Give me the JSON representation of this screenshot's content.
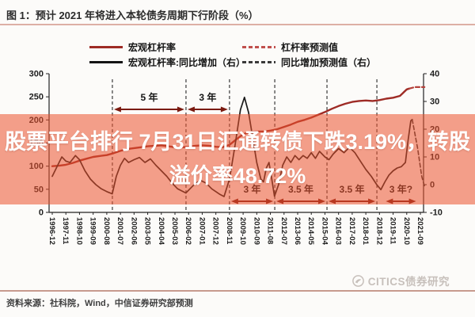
{
  "title": "图 1：预计 2021 年将进入本轮债务周期下行阶段（%）",
  "legend": [
    {
      "label": "宏观杠杆率",
      "style": "solid",
      "color": "#9e2b25"
    },
    {
      "label": "杠杆率预测值",
      "style": "dashed",
      "color": "#c0504d"
    },
    {
      "label": "宏观杠杆率:同比增加（右）",
      "style": "solid",
      "color": "#141414"
    },
    {
      "label": "同比增加预测值（右）",
      "style": "dashed",
      "color": "#3a3a3a"
    }
  ],
  "overlay": {
    "line1": "股票平台排行 7月31日汇通转债下跌3.19%，转股",
    "line2": "溢价率48.72%",
    "band_color": "rgba(235,82,46,0.55)",
    "text_color": "#ffffff"
  },
  "source": "资料来源：社科院，Wind，中信证券研究部预测",
  "watermark": "CITICS债券研究",
  "chart_data": {
    "type": "line",
    "x_tick_labels": [
      "1996-12",
      "1997-11",
      "1998-10",
      "1999-09",
      "2000-08",
      "2001-07",
      "2002-06",
      "2003-05",
      "2004-04",
      "2005-03",
      "2006-02",
      "2007-01",
      "2007-12",
      "2008-11",
      "2009-10",
      "2010-09",
      "2011-08",
      "2012-07",
      "2013-06",
      "2014-05",
      "2015-04",
      "2016-03",
      "2017-02",
      "2018-01",
      "2018-12",
      "2019-11",
      "2020-10",
      "2021-09"
    ],
    "left_axis": {
      "ticks": [
        300,
        250,
        200,
        150,
        100,
        50,
        0
      ],
      "range": [
        0,
        300
      ]
    },
    "right_axis": {
      "ticks": [
        40,
        30,
        20,
        10,
        0,
        -10
      ],
      "range": [
        -10,
        40
      ]
    },
    "series": [
      {
        "name": "宏观杠杆率",
        "axis": "left",
        "style": "solid",
        "color": "#9e2b25",
        "width": 2.4,
        "points": [
          [
            0,
            100
          ],
          [
            0.5,
            101
          ],
          [
            1,
            103
          ],
          [
            1.5,
            107
          ],
          [
            2,
            112
          ],
          [
            2.5,
            116
          ],
          [
            3,
            120
          ],
          [
            3.5,
            122
          ],
          [
            4,
            124
          ],
          [
            4.5,
            128
          ],
          [
            5,
            133
          ],
          [
            5.5,
            137
          ],
          [
            6,
            139
          ],
          [
            6.5,
            141
          ],
          [
            7,
            143
          ],
          [
            7.5,
            144
          ],
          [
            8,
            145
          ],
          [
            8.5,
            143
          ],
          [
            9,
            141
          ],
          [
            9.5,
            141
          ],
          [
            10,
            142
          ],
          [
            10.5,
            144
          ],
          [
            11,
            145
          ],
          [
            11.5,
            144
          ],
          [
            12,
            142
          ],
          [
            12.5,
            141
          ],
          [
            13,
            146
          ],
          [
            13.5,
            158
          ],
          [
            14,
            169
          ],
          [
            14.5,
            174
          ],
          [
            15,
            175
          ],
          [
            15.5,
            175
          ],
          [
            16,
            177
          ],
          [
            16.5,
            180
          ],
          [
            17,
            185
          ],
          [
            17.5,
            190
          ],
          [
            18,
            196
          ],
          [
            18.5,
            200
          ],
          [
            19,
            205
          ],
          [
            19.5,
            211
          ],
          [
            20,
            217
          ],
          [
            20.5,
            224
          ],
          [
            21,
            230
          ],
          [
            21.5,
            235
          ],
          [
            22,
            239
          ],
          [
            22.5,
            241
          ],
          [
            23,
            242
          ],
          [
            23.5,
            241
          ],
          [
            24,
            243
          ],
          [
            24.5,
            246
          ],
          [
            25,
            248
          ],
          [
            25.5,
            252
          ],
          [
            26,
            266
          ],
          [
            26.2,
            268
          ]
        ]
      },
      {
        "name": "杠杆率预测值",
        "axis": "left",
        "style": "dashed",
        "color": "#b5423c",
        "width": 2.2,
        "points": [
          [
            26.2,
            268
          ],
          [
            26.6,
            271
          ],
          [
            27.3,
            271
          ]
        ]
      },
      {
        "name": "宏观杠杆率:同比增加（右）",
        "axis": "right",
        "style": "solid",
        "color": "#1a1a1a",
        "width": 1.7,
        "points": [
          [
            0,
            3
          ],
          [
            0.4,
            7
          ],
          [
            0.7,
            10
          ],
          [
            1,
            8.5
          ],
          [
            1.3,
            8
          ],
          [
            1.7,
            10.5
          ],
          [
            2,
            9
          ],
          [
            2.4,
            5
          ],
          [
            2.8,
            2
          ],
          [
            3.2,
            0
          ],
          [
            3.6,
            -1.5
          ],
          [
            4,
            -2.5
          ],
          [
            4.4,
            -3.3
          ],
          [
            4.7,
            3
          ],
          [
            5,
            7
          ],
          [
            5.3,
            9.5
          ],
          [
            5.6,
            8
          ],
          [
            6,
            9
          ],
          [
            6.4,
            9.8
          ],
          [
            6.8,
            8
          ],
          [
            7.2,
            9.3
          ],
          [
            7.6,
            7
          ],
          [
            8,
            5
          ],
          [
            8.4,
            3
          ],
          [
            8.8,
            0.5
          ],
          [
            9.2,
            -1.5
          ],
          [
            9.6,
            -2.5
          ],
          [
            9.8,
            -3
          ],
          [
            10.1,
            -1.5
          ],
          [
            10.5,
            0.5
          ],
          [
            10.9,
            1.5
          ],
          [
            11.3,
            0.5
          ],
          [
            11.7,
            -1.5
          ],
          [
            12,
            -2.5
          ],
          [
            12.3,
            -3.5
          ],
          [
            12.6,
            -4.3
          ],
          [
            13,
            2
          ],
          [
            13.4,
            14
          ],
          [
            13.8,
            27
          ],
          [
            14.1,
            31.5
          ],
          [
            14.4,
            26
          ],
          [
            14.7,
            17
          ],
          [
            15,
            8
          ],
          [
            15.3,
            2
          ],
          [
            15.5,
            1
          ],
          [
            15.7,
            6
          ],
          [
            15.9,
            8
          ],
          [
            16.1,
            2
          ],
          [
            16.3,
            -4.2
          ],
          [
            16.6,
            0
          ],
          [
            16.9,
            7
          ],
          [
            17.2,
            10
          ],
          [
            17.5,
            8
          ],
          [
            17.8,
            10.5
          ],
          [
            18.1,
            9
          ],
          [
            18.4,
            10.5
          ],
          [
            18.7,
            9.5
          ],
          [
            19,
            11.5
          ],
          [
            19.3,
            9.5
          ],
          [
            19.6,
            12
          ],
          [
            20,
            10
          ],
          [
            20.3,
            9
          ],
          [
            20.6,
            11
          ],
          [
            21,
            13
          ],
          [
            21.4,
            11.5
          ],
          [
            21.8,
            13.5
          ],
          [
            22.2,
            11.5
          ],
          [
            22.6,
            8.5
          ],
          [
            23,
            5.5
          ],
          [
            23.4,
            3
          ],
          [
            23.8,
            0
          ],
          [
            24.1,
            -1.8
          ],
          [
            24.4,
            1
          ],
          [
            24.7,
            3.5
          ],
          [
            25,
            5
          ],
          [
            25.3,
            6
          ],
          [
            25.6,
            6.5
          ],
          [
            25.9,
            8
          ],
          [
            26.1,
            16
          ],
          [
            26.3,
            23
          ],
          [
            26.4,
            23.5
          ]
        ]
      },
      {
        "name": "同比增加预测值（右）",
        "axis": "right",
        "style": "dashed",
        "color": "#333333",
        "width": 1.6,
        "points": [
          [
            26.4,
            23.5
          ],
          [
            26.8,
            13
          ],
          [
            27.1,
            3
          ],
          [
            27.3,
            -0.5
          ]
        ]
      }
    ],
    "cycle_lines": [
      4.41,
      9.81,
      13.0,
      16.32,
      20.15,
      23.81
    ],
    "annotations": [
      {
        "label": "5 年",
        "from": 4.41,
        "to": 9.81,
        "row": "top"
      },
      {
        "label": "3 年",
        "from": 9.81,
        "to": 13.0,
        "row": "top"
      },
      {
        "label": "3 年",
        "from": 13.0,
        "to": 16.32,
        "row": "bottom"
      },
      {
        "label": "3.5 年",
        "from": 16.32,
        "to": 20.15,
        "row": "bottom"
      },
      {
        "label": "3.5 年",
        "from": 20.15,
        "to": 23.81,
        "row": "bottom"
      },
      {
        "label": "3 年?",
        "from": 24.35,
        "to": 26.8,
        "row": "bottom"
      }
    ]
  }
}
